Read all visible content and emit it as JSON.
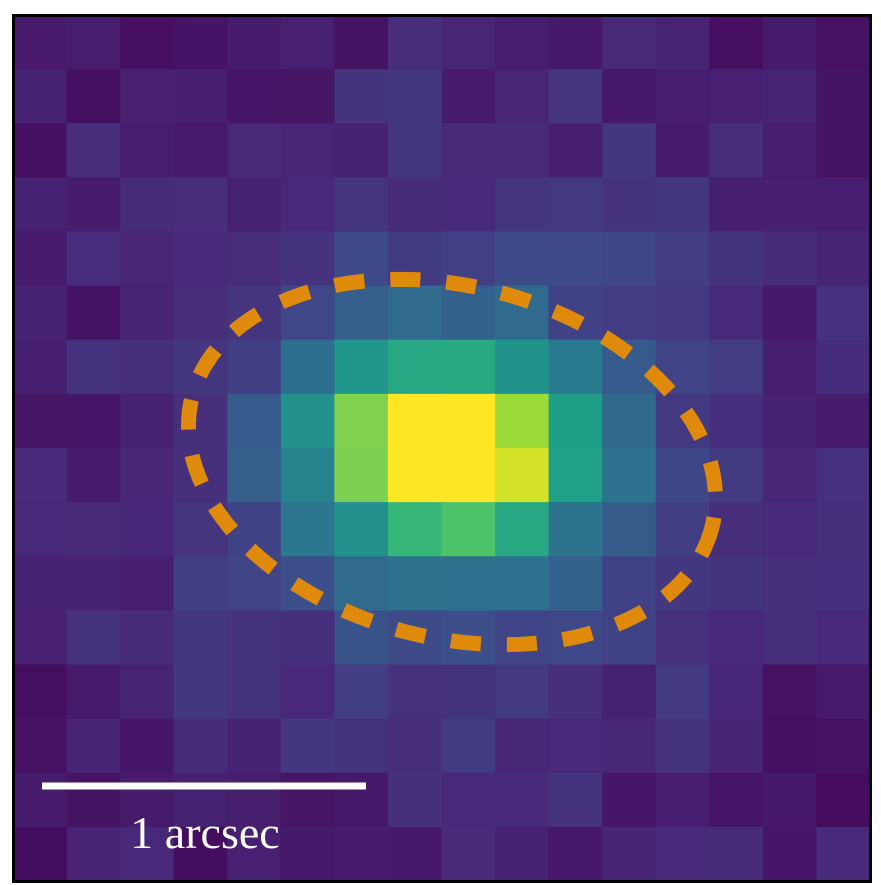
{
  "scale_bar": {
    "label": "1 arcsec"
  }
}
